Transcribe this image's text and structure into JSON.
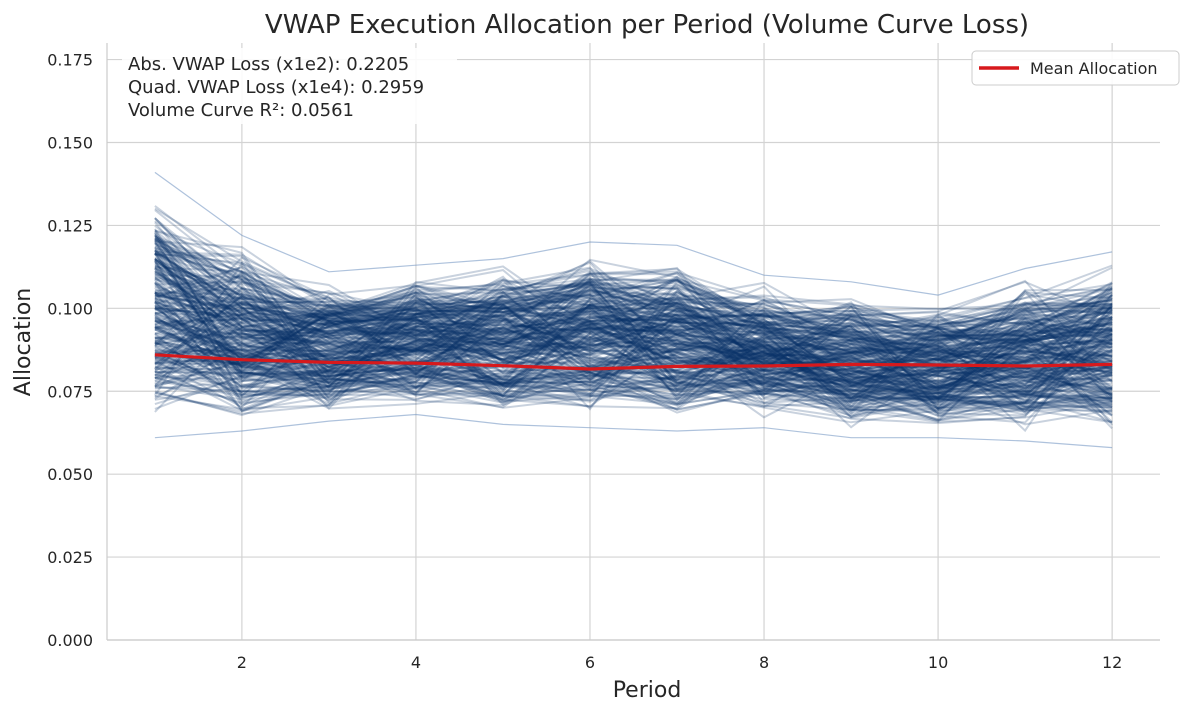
{
  "chart_data": {
    "type": "line",
    "title": "VWAP Execution Allocation per Period (Volume Curve Loss)",
    "xlabel": "Period",
    "ylabel": "Allocation",
    "xlim": [
      0.45,
      12.55
    ],
    "ylim": [
      0.0,
      0.18
    ],
    "xticks": [
      2,
      4,
      6,
      8,
      10,
      12
    ],
    "yticks": [
      0.0,
      0.025,
      0.05,
      0.075,
      0.1,
      0.125,
      0.15,
      0.175
    ],
    "ytick_labels": [
      "0.000",
      "0.025",
      "0.050",
      "0.075",
      "0.100",
      "0.125",
      "0.150",
      "0.175"
    ],
    "grid": true,
    "x": [
      1,
      2,
      3,
      4,
      5,
      6,
      7,
      8,
      9,
      10,
      11,
      12
    ],
    "series": [
      {
        "name": "Mean Allocation",
        "color": "#d7191c",
        "values": [
          0.086,
          0.0845,
          0.0837,
          0.0835,
          0.0827,
          0.0817,
          0.0825,
          0.0826,
          0.0831,
          0.0829,
          0.0826,
          0.0831
        ]
      }
    ],
    "sample_paths": {
      "color": "#08306b",
      "approx_count": 300,
      "upper_envelope": [
        0.141,
        0.122,
        0.111,
        0.113,
        0.115,
        0.12,
        0.119,
        0.11,
        0.108,
        0.104,
        0.112,
        0.117
      ],
      "lower_envelope": [
        0.061,
        0.063,
        0.066,
        0.068,
        0.065,
        0.064,
        0.063,
        0.064,
        0.061,
        0.061,
        0.06,
        0.058
      ]
    },
    "legend": {
      "position": "top-right",
      "entries": [
        "Mean Allocation"
      ]
    },
    "annotations": [
      "Abs. VWAP Loss (x1e2): 0.2205",
      "Quad. VWAP Loss (x1e4): 0.2959",
      "Volume Curve R²: 0.0561"
    ]
  }
}
